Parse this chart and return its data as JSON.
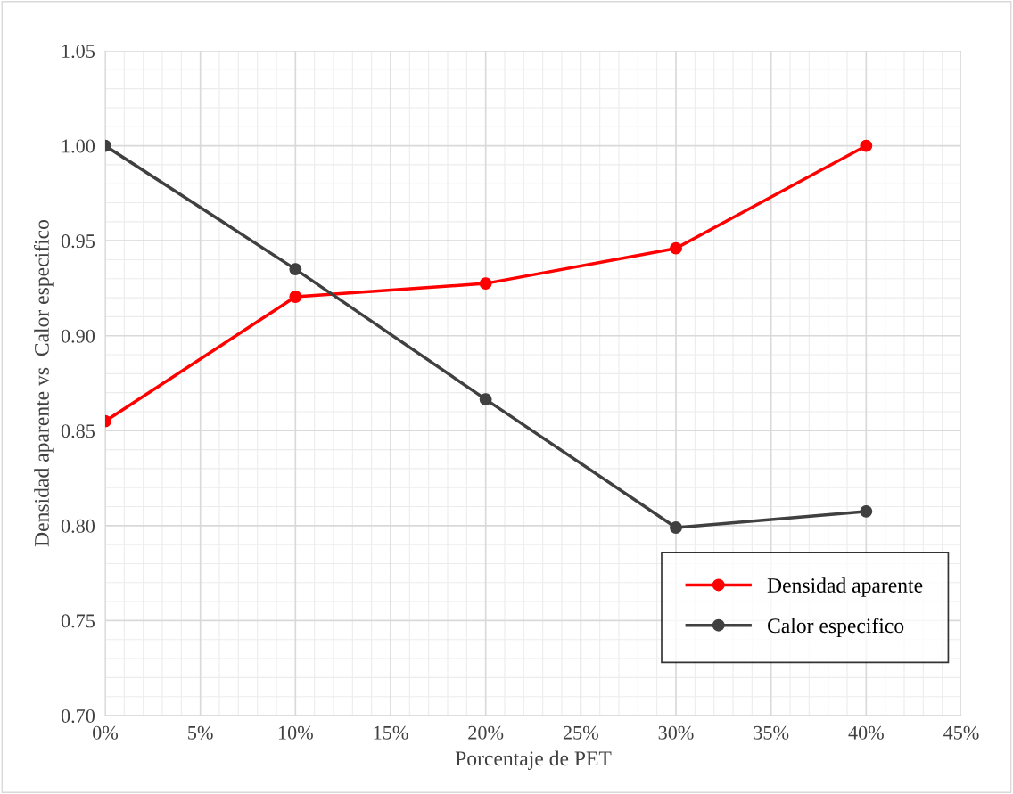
{
  "chart_data": {
    "type": "line",
    "xlabel": "Porcentaje de PET",
    "ylabel": "Densidad aparente vs  Calor especifico",
    "x": [
      0,
      10,
      20,
      30,
      40
    ],
    "series": [
      {
        "name": "Densidad aparente",
        "color": "#ff0000",
        "values": [
          0.855,
          0.9205,
          0.9275,
          0.946,
          1.0
        ]
      },
      {
        "name": "Calor especifico",
        "color": "#404040",
        "values": [
          1.0,
          0.935,
          0.8665,
          0.799,
          0.8075
        ]
      }
    ],
    "xlim": [
      0,
      45
    ],
    "xticks": [
      {
        "value": 0,
        "label": "0%"
      },
      {
        "value": 5,
        "label": "5%"
      },
      {
        "value": 10,
        "label": "10%"
      },
      {
        "value": 15,
        "label": "15%"
      },
      {
        "value": 20,
        "label": "20%"
      },
      {
        "value": 25,
        "label": "25%"
      },
      {
        "value": 30,
        "label": "30%"
      },
      {
        "value": 35,
        "label": "35%"
      },
      {
        "value": 40,
        "label": "40%"
      },
      {
        "value": 45,
        "label": "45%"
      }
    ],
    "ylim": [
      0.7,
      1.05
    ],
    "yticks": [
      {
        "value": 0.7,
        "label": "0.70"
      },
      {
        "value": 0.75,
        "label": "0.75"
      },
      {
        "value": 0.8,
        "label": "0.80"
      },
      {
        "value": 0.85,
        "label": "0.85"
      },
      {
        "value": 0.9,
        "label": "0.90"
      },
      {
        "value": 0.95,
        "label": "0.95"
      },
      {
        "value": 1.0,
        "label": "1.00"
      },
      {
        "value": 1.05,
        "label": "1.05"
      }
    ],
    "grid": true,
    "legend": "bottom right",
    "marker": "circle",
    "line_style": "solid"
  }
}
